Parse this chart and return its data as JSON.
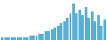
{
  "values": [
    1,
    1,
    1,
    1,
    1,
    1,
    1,
    1,
    1,
    2,
    2,
    2,
    3,
    3,
    4,
    4,
    5,
    6,
    7,
    8,
    9,
    11,
    13,
    18,
    13,
    15,
    12,
    16,
    11,
    14,
    9,
    12,
    7,
    10
  ],
  "bar_color": "#5bafd6",
  "background_color": "#ffffff",
  "ylim_min": 0
}
